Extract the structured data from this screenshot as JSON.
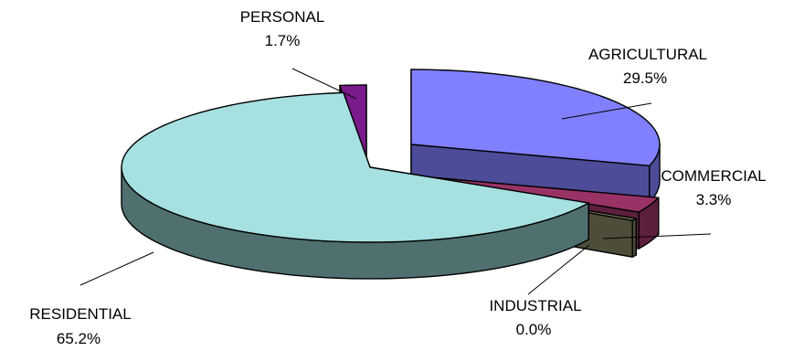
{
  "chart_data": {
    "type": "pie",
    "style": "3d-exploded",
    "title": "",
    "slices": [
      {
        "label": "AGRICULTURAL",
        "value": 29.5,
        "value_label": "29.5%",
        "color": "#8080ff",
        "side_color": "#4c4c99"
      },
      {
        "label": "COMMERCIAL",
        "value": 3.3,
        "value_label": "3.3%",
        "color": "#993366",
        "side_color": "#5c1f3d"
      },
      {
        "label": "INDUSTRIAL",
        "value": 0.0,
        "value_label": "0.0%",
        "color": "#808060",
        "side_color": "#4d4d39"
      },
      {
        "label": "RESIDENTIAL",
        "value": 65.2,
        "value_label": "65.2%",
        "color": "#a6e0e0",
        "side_color": "#507070"
      },
      {
        "label": "PERSONAL",
        "value": 1.7,
        "value_label": "1.7%",
        "color": "#7a1a8c",
        "side_color": "#400a4a"
      }
    ]
  }
}
